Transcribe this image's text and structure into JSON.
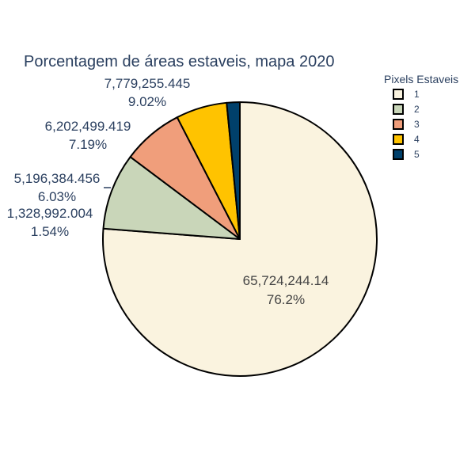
{
  "chart_data": {
    "type": "pie",
    "title": "Porcentagem de áreas estaveis, mapa 2020",
    "legend": {
      "title": "Pixels Estaveis",
      "placement": "top-right"
    },
    "slices": [
      {
        "label": "1",
        "value": 65724244.14,
        "value_text": "65,724,244.14",
        "percent_text": "76.2%",
        "color": "#faf3df"
      },
      {
        "label": "2",
        "value": 7779255.445,
        "value_text": "7,779,255.445",
        "percent_text": "9.02%",
        "color": "#c9d6b9"
      },
      {
        "label": "3",
        "value": 6202499.419,
        "value_text": "6,202,499.419",
        "percent_text": "7.19%",
        "color": "#f09e7b"
      },
      {
        "label": "4",
        "value": 5196384.456,
        "value_text": "5,196,384.456",
        "percent_text": "6.03%",
        "color": "#ffc300"
      },
      {
        "label": "5",
        "value": 1328992.004,
        "value_text": "1,328,992.004",
        "percent_text": "1.54%",
        "color": "#00406b"
      }
    ],
    "outline_color": "#000000"
  }
}
